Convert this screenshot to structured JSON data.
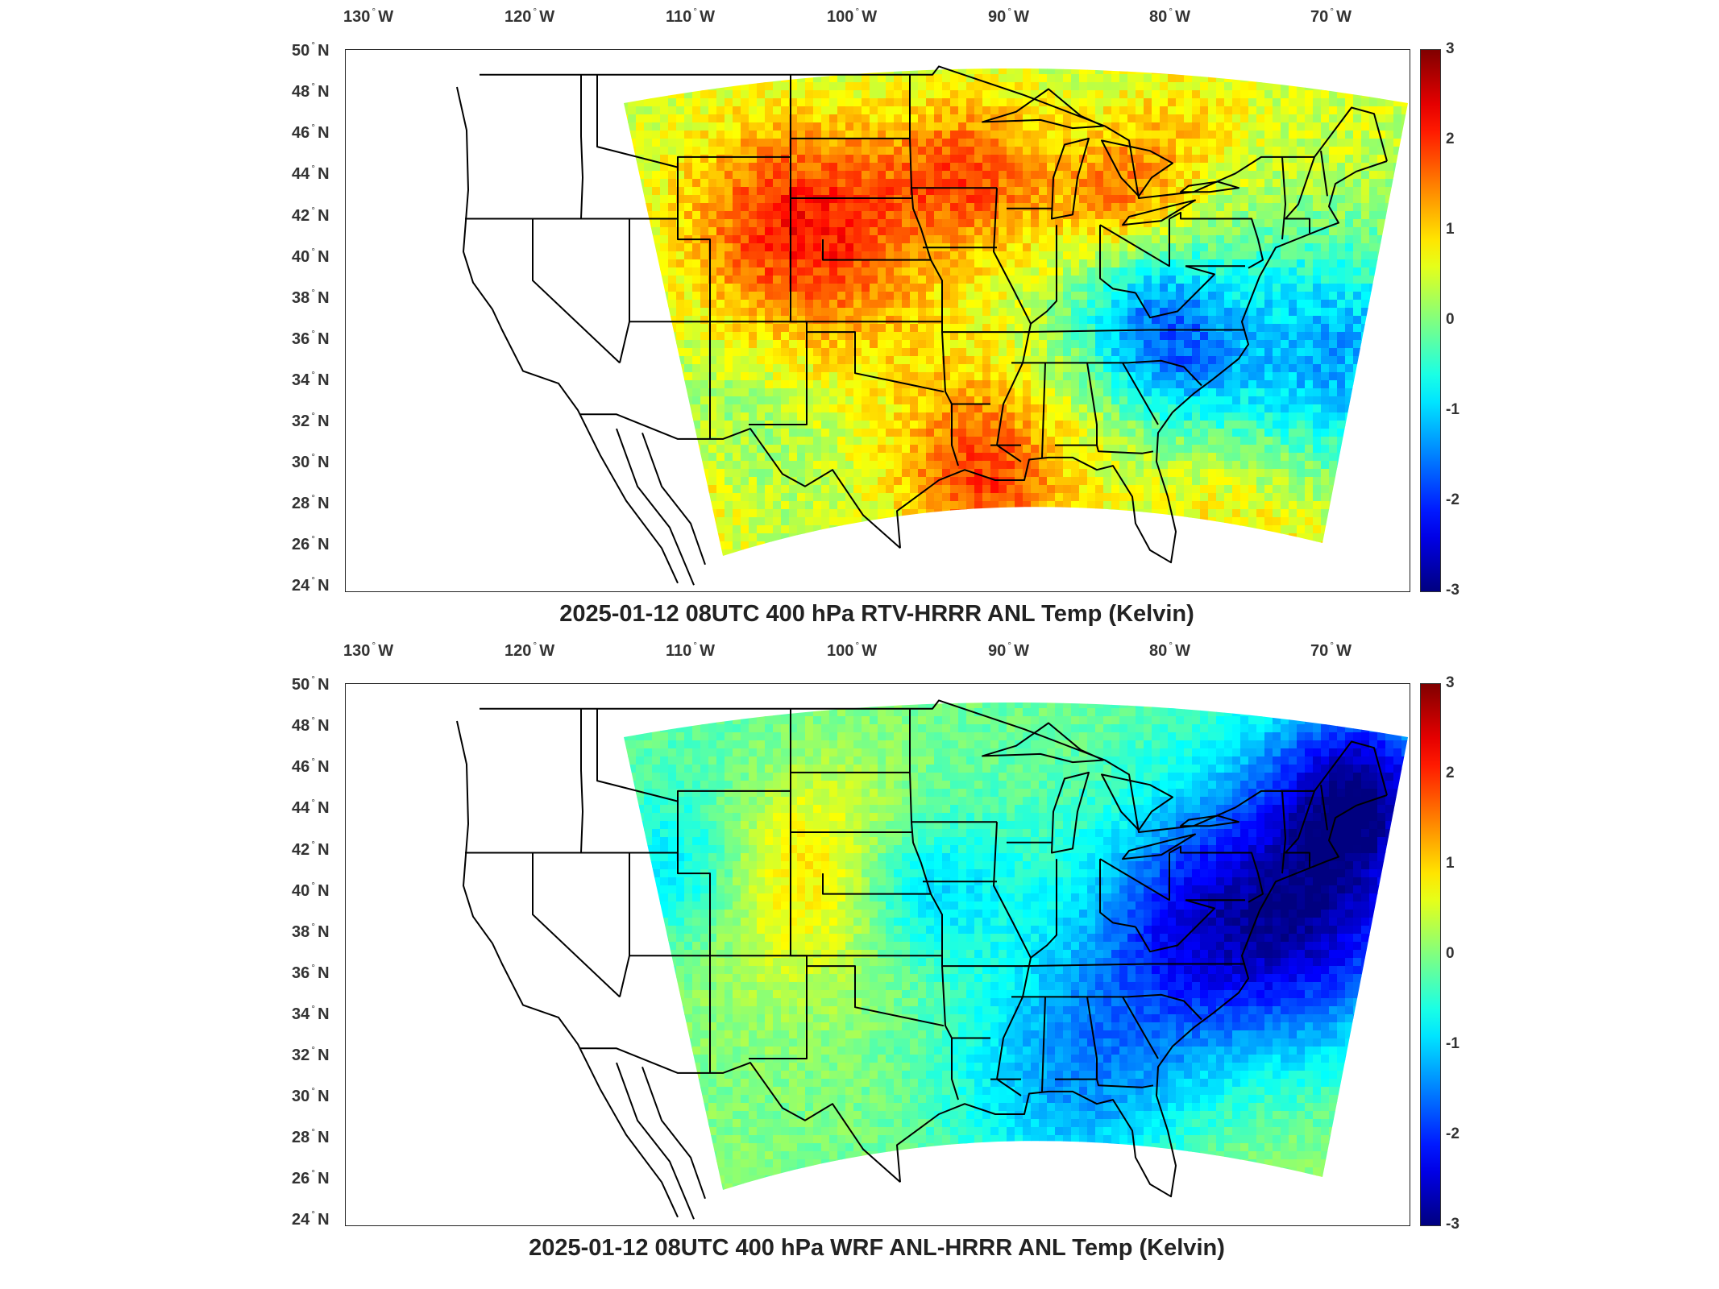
{
  "panels": [
    {
      "title": "2025-01-12 08UTC 400 hPa RTV-HRRR ANL Temp (Kelvin)",
      "field_bias": 0.6,
      "field_noise": 0.7
    },
    {
      "title": "2025-01-12 08UTC 400 hPa WRF ANL-HRRR ANL Temp (Kelvin)",
      "field_bias": 0.2,
      "field_noise": 0.45
    }
  ],
  "lon_ticks": [
    {
      "value": "130",
      "hemi": "W"
    },
    {
      "value": "120",
      "hemi": "W"
    },
    {
      "value": "110",
      "hemi": "W"
    },
    {
      "value": "100",
      "hemi": "W"
    },
    {
      "value": "90",
      "hemi": "W"
    },
    {
      "value": "80",
      "hemi": "W"
    },
    {
      "value": "70",
      "hemi": "W"
    }
  ],
  "lat_ticks": [
    {
      "value": "50",
      "hemi": "N"
    },
    {
      "value": "48",
      "hemi": "N"
    },
    {
      "value": "46",
      "hemi": "N"
    },
    {
      "value": "44",
      "hemi": "N"
    },
    {
      "value": "42",
      "hemi": "N"
    },
    {
      "value": "40",
      "hemi": "N"
    },
    {
      "value": "38",
      "hemi": "N"
    },
    {
      "value": "36",
      "hemi": "N"
    },
    {
      "value": "34",
      "hemi": "N"
    },
    {
      "value": "32",
      "hemi": "N"
    },
    {
      "value": "30",
      "hemi": "N"
    },
    {
      "value": "28",
      "hemi": "N"
    },
    {
      "value": "26",
      "hemi": "N"
    },
    {
      "value": "24",
      "hemi": "N"
    }
  ],
  "colorbar": {
    "min": -3,
    "max": 3,
    "labels": [
      "3",
      "2",
      "1",
      "0",
      "-1",
      "-2",
      "-3"
    ],
    "colormap": "jet"
  },
  "colors": {
    "coastline": "#000000",
    "frame": "#222222"
  }
}
